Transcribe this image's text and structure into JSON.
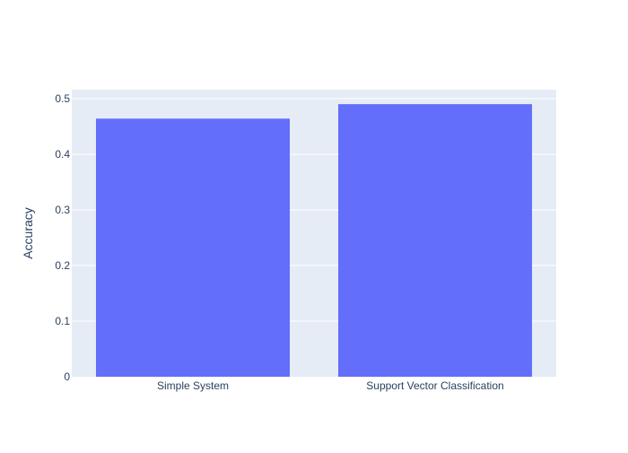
{
  "chart_data": {
    "type": "bar",
    "categories": [
      "Simple System",
      "Support Vector Classification"
    ],
    "values": [
      0.464,
      0.49
    ],
    "xlabel": "",
    "ylabel": "Accuracy",
    "ylim": [
      0,
      0.516
    ],
    "yticks": [
      0,
      0.1,
      0.2,
      0.3,
      0.4,
      0.5
    ],
    "ytick_labels": [
      "0",
      "0.1",
      "0.2",
      "0.3",
      "0.4",
      "0.5"
    ],
    "grid": true,
    "legend": false,
    "colors": {
      "bar": "#636efa",
      "plot_background": "#e5ecf6",
      "gridline": "#ffffff",
      "text": "#2a3f5f"
    }
  }
}
